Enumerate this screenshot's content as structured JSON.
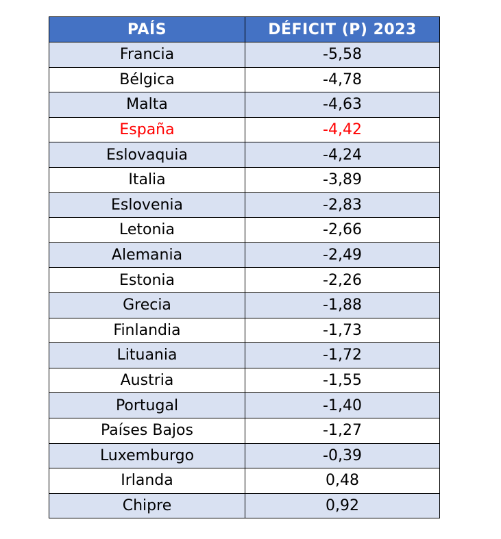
{
  "table": {
    "headers": [
      "PAÍS",
      "DÉFICIT (P) 2023"
    ],
    "highlight_color": "#ff0000",
    "header_bg": "#4472c4",
    "stripe_bg": "#d9e1f2",
    "rows": [
      {
        "country": "Francia",
        "value": "-5,58",
        "highlight": false
      },
      {
        "country": "Bélgica",
        "value": "-4,78",
        "highlight": false
      },
      {
        "country": "Malta",
        "value": "-4,63",
        "highlight": false
      },
      {
        "country": "España",
        "value": "-4,42",
        "highlight": true
      },
      {
        "country": "Eslovaquia",
        "value": "-4,24",
        "highlight": false
      },
      {
        "country": "Italia",
        "value": "-3,89",
        "highlight": false
      },
      {
        "country": "Eslovenia",
        "value": "-2,83",
        "highlight": false
      },
      {
        "country": "Letonia",
        "value": "-2,66",
        "highlight": false
      },
      {
        "country": "Alemania",
        "value": "-2,49",
        "highlight": false
      },
      {
        "country": "Estonia",
        "value": "-2,26",
        "highlight": false
      },
      {
        "country": "Grecia",
        "value": "-1,88",
        "highlight": false
      },
      {
        "country": "Finlandia",
        "value": "-1,73",
        "highlight": false
      },
      {
        "country": "Lituania",
        "value": "-1,72",
        "highlight": false
      },
      {
        "country": "Austria",
        "value": "-1,55",
        "highlight": false
      },
      {
        "country": "Portugal",
        "value": "-1,40",
        "highlight": false
      },
      {
        "country": "Países Bajos",
        "value": "-1,27",
        "highlight": false
      },
      {
        "country": "Luxemburgo",
        "value": "-0,39",
        "highlight": false
      },
      {
        "country": "Irlanda",
        "value": "0,48",
        "highlight": false
      },
      {
        "country": "Chipre",
        "value": "0,92",
        "highlight": false
      }
    ]
  }
}
